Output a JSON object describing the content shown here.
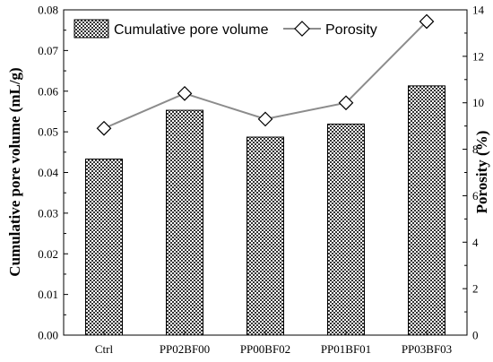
{
  "chart_data": {
    "type": "bar",
    "categories": [
      "Ctrl",
      "PP02BF00",
      "PP00BF02",
      "PP01BF01",
      "PP03BF03"
    ],
    "series": [
      {
        "name": "Cumulative pore volume",
        "type": "bar",
        "axis": "left",
        "values": [
          0.0433,
          0.0553,
          0.0487,
          0.0519,
          0.0613
        ]
      },
      {
        "name": "Porosity",
        "type": "line",
        "axis": "right",
        "marker": "diamond",
        "values": [
          8.9,
          10.4,
          9.3,
          10.0,
          13.5
        ]
      }
    ],
    "ylabel": "Cumulative pore volume (mL/g)",
    "y2label": "Porosity (%)",
    "ylim": [
      0,
      0.08
    ],
    "y2lim": [
      0,
      14
    ],
    "yticks": [
      "0.00",
      "0.01",
      "0.02",
      "0.03",
      "0.04",
      "0.05",
      "0.06",
      "0.07",
      "0.08"
    ],
    "y2ticks": [
      "0",
      "2",
      "4",
      "6",
      "8",
      "10",
      "12",
      "14"
    ],
    "legend_position": "top",
    "grid": false,
    "colors": {
      "bar_fill": "#555555",
      "bar_pattern": "crosshatch-dots",
      "line": "#8c8c8c",
      "marker_fill": "#ffffff",
      "axis": "#000000"
    }
  }
}
